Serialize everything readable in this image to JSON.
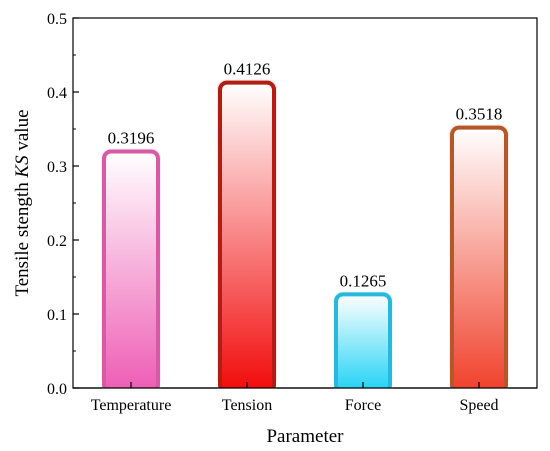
{
  "chart_data": {
    "type": "bar",
    "xlabel": "Parameter",
    "ylabel_prefix": "Tensile stength ",
    "ylabel_italic": "KS",
    "ylabel_suffix": " value",
    "ylim": [
      0,
      0.5
    ],
    "yticks": [
      "0.0",
      "0.1",
      "0.2",
      "0.3",
      "0.4",
      "0.5"
    ],
    "categories": [
      "Temperature",
      "Tension",
      "Force",
      "Speed"
    ],
    "values": [
      0.3196,
      0.4126,
      0.1265,
      0.3518
    ],
    "value_labels": [
      "0.3196",
      "0.4126",
      "0.1265",
      "0.3518"
    ],
    "bar_colors": [
      {
        "stroke": "#d85aa6",
        "bottom": "#ee5cb4",
        "top": "#ffffff"
      },
      {
        "stroke": "#b21d12",
        "bottom": "#f20a0a",
        "top": "#ffffff"
      },
      {
        "stroke": "#27b8dc",
        "bottom": "#1fd2f5",
        "top": "#ffffff"
      },
      {
        "stroke": "#b4582a",
        "bottom": "#f0402a",
        "top": "#ffffff"
      }
    ],
    "grid": false,
    "legend": "none"
  }
}
